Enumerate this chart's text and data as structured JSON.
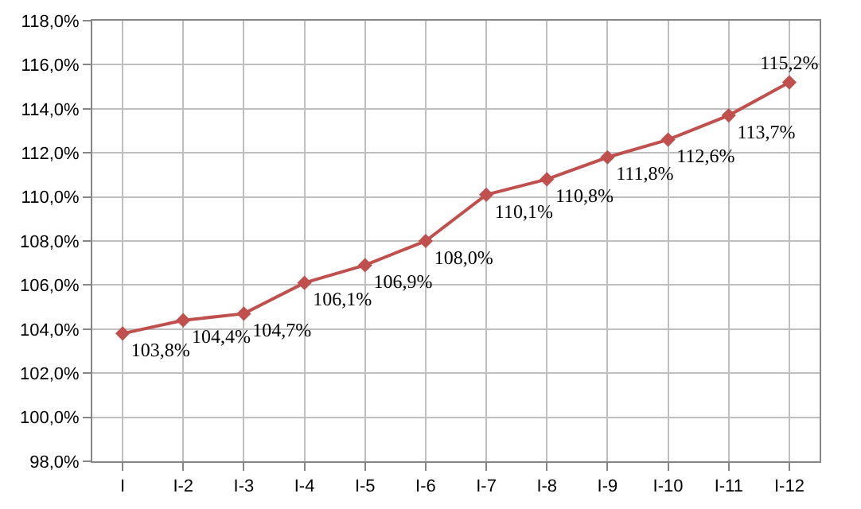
{
  "chart_data": {
    "type": "line",
    "categories": [
      "I",
      "I-2",
      "I-3",
      "I-4",
      "I-5",
      "I-6",
      "I-7",
      "I-8",
      "I-9",
      "I-10",
      "I-11",
      "I-12"
    ],
    "series": [
      {
        "color": "#c0504d",
        "values": [
          103.8,
          104.4,
          104.7,
          106.1,
          106.9,
          108.0,
          110.1,
          110.8,
          111.8,
          112.6,
          113.7,
          115.2
        ],
        "value_labels": [
          "103,8%",
          "104,4%",
          "104,7%",
          "106,1%",
          "106,9%",
          "108,0%",
          "110,1%",
          "110,8%",
          "111,8%",
          "112,6%",
          "113,7%",
          "115,2%"
        ]
      }
    ],
    "ylim": [
      98,
      118
    ],
    "yticks": [
      {
        "value": 98,
        "label": "98,0%"
      },
      {
        "value": 100,
        "label": "100,0%"
      },
      {
        "value": 102,
        "label": "102,0%"
      },
      {
        "value": 104,
        "label": "104,0%"
      },
      {
        "value": 106,
        "label": "106,0%"
      },
      {
        "value": 108,
        "label": "108,0%"
      },
      {
        "value": 110,
        "label": "110,0%"
      },
      {
        "value": 112,
        "label": "112,0%"
      },
      {
        "value": 114,
        "label": "114,0%"
      },
      {
        "value": 116,
        "label": "116,0%"
      },
      {
        "value": 118,
        "label": "118,0%"
      }
    ],
    "grid": true,
    "legend": false,
    "marker": "diamond",
    "line_style": "solid"
  }
}
